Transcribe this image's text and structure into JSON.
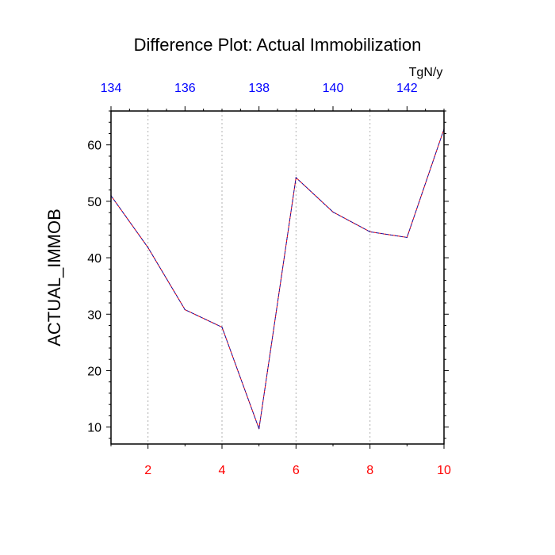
{
  "chart_data": {
    "type": "line",
    "title": "Difference Plot: Actual Immobilization",
    "ylabel": "ACTUAL_IMMOB",
    "top_axis_units": "TgN/y",
    "x": [
      1,
      2,
      3,
      4,
      5,
      6,
      7,
      8,
      9,
      10
    ],
    "xlim": [
      1,
      10
    ],
    "x_ticks": [
      2,
      4,
      6,
      8,
      10
    ],
    "x_tick_labels": [
      "2",
      "4",
      "6",
      "8",
      "10"
    ],
    "top_axis_range": [
      134,
      143
    ],
    "top_ticks": [
      134,
      136,
      138,
      140,
      142
    ],
    "top_tick_labels": [
      "134",
      "136",
      "138",
      "140",
      "142"
    ],
    "ylim": [
      7,
      66
    ],
    "y_ticks": [
      10,
      20,
      30,
      40,
      50,
      60
    ],
    "y_tick_labels": [
      "10",
      "20",
      "30",
      "40",
      "50",
      "60"
    ],
    "grid": "vertical dotted at bottom x ticks",
    "series": [
      {
        "name": "ACTUAL_IMMOB difference",
        "values": [
          51.0,
          41.8,
          30.8,
          27.7,
          9.7,
          54.2,
          48.1,
          44.6,
          43.6,
          62.8
        ],
        "color": "#1a0d99",
        "color2": "#ff0000",
        "style": "dashed"
      }
    ],
    "colors": {
      "bottom_tick_labels": "#ff0000",
      "top_tick_labels": "#0000ff",
      "axes": "#000000",
      "grid": "#b0b0b0"
    }
  }
}
